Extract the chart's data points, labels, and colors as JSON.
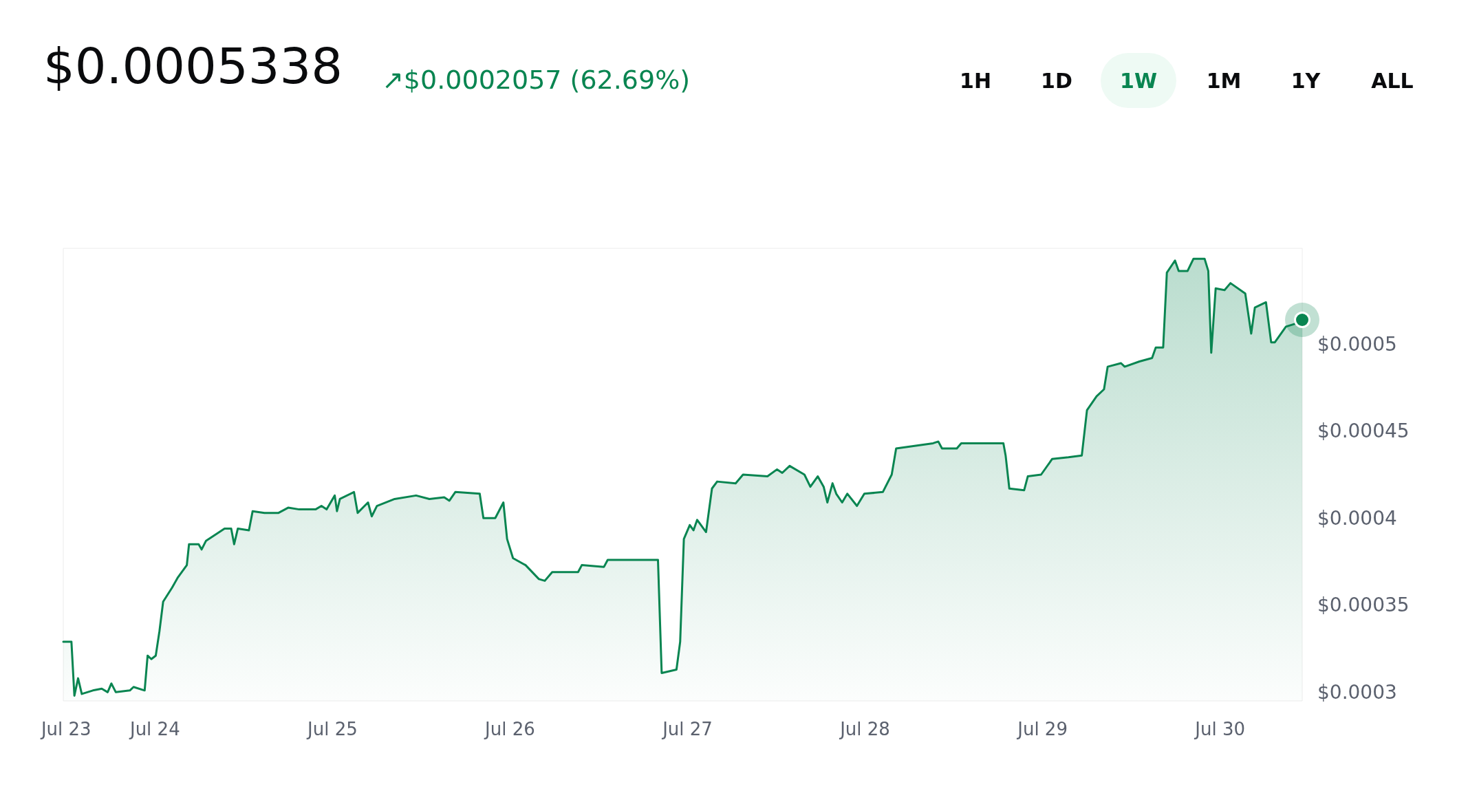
{
  "chart_data": {
    "type": "area",
    "title": "$0.0005338",
    "subtitle": "↗$0.0002057 (62.69%)",
    "annotations": [
      "1H",
      "1D",
      "1W",
      "1M",
      "1Y",
      "ALL"
    ],
    "series": [
      {
        "color": "#098551",
        "x": [
          "--07-23T11:36",
          "--07-23T12:42",
          "--07-23T13:06",
          "--07-23T13:36",
          "--07-23T14:06",
          "--07-23T15:36",
          "--07-23T16:48",
          "--07-23T17:36",
          "--07-23T18:06",
          "--07-23T18:42",
          "--07-23T20:36",
          "--07-23T21:06",
          "--07-23T22:36",
          "--07-23T23:00",
          "--07-23T23:30",
          "--07-24T00:06",
          "--07-24T00:36",
          "--07-24T01:06",
          "--07-24T02:18",
          "--07-24T03:06",
          "--07-24T04:18",
          "--07-24T04:36",
          "--07-24T05:54",
          "--07-24T06:18",
          "--07-24T06:54",
          "--07-24T08:42",
          "--07-24T09:24",
          "--07-24T10:18",
          "--07-24T10:42",
          "--07-24T11:12",
          "--07-24T12:42",
          "--07-24T13:12",
          "--07-24T14:48",
          "--07-24T16:42",
          "--07-24T18:00",
          "--07-24T19:30",
          "--07-24T21:42",
          "--07-24T22:30",
          "--07-24T23:12",
          "--07-25T00:18",
          "--07-25T00:36",
          "--07-25T01:00",
          "--07-25T02:54",
          "--07-25T03:24",
          "--07-25T04:48",
          "--07-25T05:18",
          "--07-25T06:00",
          "--07-25T08:24",
          "--07-25T11:18",
          "--07-25T13:06",
          "--07-25T15:06",
          "--07-25T15:48",
          "--07-25T16:36",
          "--07-25T19:54",
          "--07-25T20:24",
          "--07-25T22:00",
          "--07-25T23:06",
          "--07-25T23:36",
          "--07-26T00:24",
          "--07-26T02:06",
          "--07-26T03:54",
          "--07-26T04:42",
          "--07-26T05:42",
          "--07-26T09:12",
          "--07-26T09:42",
          "--07-26T12:42",
          "--07-26T13:12",
          "--07-26T19:00",
          "--07-26T20:00",
          "--07-26T20:30",
          "--07-26T22:30",
          "--07-26T23:00",
          "--07-26T23:30",
          "--07-27T00:18",
          "--07-27T00:48",
          "--07-27T01:18",
          "--07-27T02:30",
          "--07-27T03:18",
          "--07-27T04:00",
          "--07-27T06:30",
          "--07-27T07:30",
          "--07-27T10:48",
          "--07-27T12:06",
          "--07-27T12:48",
          "--07-27T13:48",
          "--07-27T15:48",
          "--07-27T16:36",
          "--07-27T17:36",
          "--07-27T18:24",
          "--07-27T18:54",
          "--07-27T19:36",
          "--07-27T20:06",
          "--07-27T20:54",
          "--07-27T21:36",
          "--07-27T22:54",
          "--07-27T23:54",
          "--07-28T02:24",
          "--07-28T03:36",
          "--07-28T04:12",
          "--07-28T09:12",
          "--07-28T09:54",
          "--07-28T10:24",
          "--07-28T12:24",
          "--07-28T13:00",
          "--07-28T18:42",
          "--07-28T19:00",
          "--07-28T19:30",
          "--07-28T21:30",
          "--07-28T22:00",
          "--07-28T23:48",
          "--07-29T01:18",
          "--07-29T03:30",
          "--07-29T05:18",
          "--07-29T06:00",
          "--07-29T07:18",
          "--07-29T08:18",
          "--07-29T08:48",
          "--07-29T10:36",
          "--07-29T11:06",
          "--07-29T13:06",
          "--07-29T14:48",
          "--07-29T15:18",
          "--07-29T16:18",
          "--07-29T16:48",
          "--07-29T17:54",
          "--07-29T18:24",
          "--07-29T19:36",
          "--07-29T20:24",
          "--07-29T21:54",
          "--07-29T22:24",
          "--07-29T22:48",
          "--07-29T23:24",
          "--07-30T00:36",
          "--07-30T01:24",
          "--07-30T03:24",
          "--07-30T04:12",
          "--07-30T04:42",
          "--07-30T06:12",
          "--07-30T06:54",
          "--07-30T07:24",
          "--07-30T08:54",
          "--07-30T10:24",
          "--07-30T11:06"
        ],
        "values": [
          0.000329,
          0.000329,
          0.000298,
          0.000308,
          0.000299,
          0.000301,
          0.000302,
          0.0003,
          0.000305,
          0.0003,
          0.000301,
          0.000303,
          0.000301,
          0.000321,
          0.000319,
          0.000321,
          0.000335,
          0.000352,
          0.00036,
          0.000366,
          0.000373,
          0.000385,
          0.000385,
          0.000382,
          0.000387,
          0.000392,
          0.000394,
          0.000394,
          0.000385,
          0.000394,
          0.000393,
          0.000404,
          0.000403,
          0.000403,
          0.000406,
          0.000405,
          0.000405,
          0.000407,
          0.000405,
          0.000413,
          0.000404,
          0.000411,
          0.000415,
          0.000403,
          0.000409,
          0.000401,
          0.000407,
          0.000411,
          0.000413,
          0.000411,
          0.000412,
          0.00041,
          0.000415,
          0.000414,
          0.0004,
          0.0004,
          0.000409,
          0.000388,
          0.000377,
          0.000373,
          0.000365,
          0.000364,
          0.000369,
          0.000369,
          0.000373,
          0.000372,
          0.000376,
          0.000376,
          0.000376,
          0.000311,
          0.000313,
          0.000329,
          0.000388,
          0.000396,
          0.000393,
          0.000399,
          0.000392,
          0.000417,
          0.000421,
          0.00042,
          0.000425,
          0.000424,
          0.000428,
          0.000426,
          0.00043,
          0.000425,
          0.000418,
          0.000424,
          0.000418,
          0.000409,
          0.00042,
          0.000414,
          0.000409,
          0.000414,
          0.000407,
          0.000414,
          0.000415,
          0.000425,
          0.00044,
          0.000443,
          0.000444,
          0.00044,
          0.00044,
          0.000443,
          0.000443,
          0.000436,
          0.000417,
          0.000416,
          0.000424,
          0.000425,
          0.000434,
          0.000435,
          0.000436,
          0.000462,
          0.00047,
          0.000474,
          0.000487,
          0.000489,
          0.000487,
          0.00049,
          0.000492,
          0.000498,
          0.000498,
          0.000541,
          0.000548,
          0.000542,
          0.000542,
          0.000549,
          0.000549,
          0.000542,
          0.000495,
          0.000532,
          0.000531,
          0.000535,
          0.000529,
          0.000506,
          0.000521,
          0.000524,
          0.000501,
          0.000501,
          0.00051,
          0.000512,
          0.000514
        ]
      }
    ],
    "xticks": [
      {
        "value": "--07-23T12:00",
        "label": "Jul 23"
      },
      {
        "value": "--07-24",
        "label": "Jul 24"
      },
      {
        "value": "--07-25",
        "label": "Jul 25"
      },
      {
        "value": "--07-26",
        "label": "Jul 26"
      },
      {
        "value": "--07-27",
        "label": "Jul 27"
      },
      {
        "value": "--07-28",
        "label": "Jul 28"
      },
      {
        "value": "--07-29",
        "label": "Jul 29"
      },
      {
        "value": "--07-30",
        "label": "Jul 30"
      }
    ],
    "xlim": [
      "--07-23T11:36",
      "--07-30T11:06"
    ],
    "ylim": [
      0.000295,
      0.000555
    ],
    "yticks": [
      {
        "value": 0.0003,
        "label": "$0.0003"
      },
      {
        "value": 0.00035,
        "label": "$0.00035"
      },
      {
        "value": 0.0004,
        "label": "$0.0004"
      },
      {
        "value": 0.00045,
        "label": "$0.00045"
      },
      {
        "value": 0.0005,
        "label": "$0.0005"
      }
    ],
    "grid": false,
    "marker": "none",
    "line_style": "solid"
  }
}
